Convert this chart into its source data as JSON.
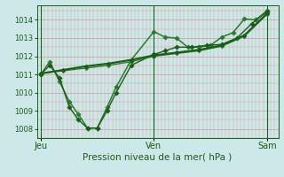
{
  "bg_color": "#cce8e8",
  "plot_bg_color": "#cce8e8",
  "line_color_dark": "#1a5c1a",
  "line_color_mid": "#2d7a2d",
  "ylim": [
    1007.5,
    1014.8
  ],
  "yticks": [
    1008,
    1009,
    1010,
    1011,
    1012,
    1013,
    1014
  ],
  "xlabel": "Pression niveau de la mer( hPa )",
  "xtick_labels": [
    "Jeu",
    "Ven",
    "Sam"
  ],
  "xtick_positions": [
    0.0,
    1.5,
    3.0
  ],
  "vlines": [
    0.0,
    1.5,
    3.0
  ],
  "xlim": [
    -0.05,
    3.15
  ],
  "series": [
    {
      "x": [
        0.0,
        0.12,
        0.25,
        0.38,
        0.5,
        0.62,
        0.75,
        0.88,
        1.0,
        1.2,
        1.5,
        1.65,
        1.8,
        1.95,
        2.1,
        2.25,
        2.4,
        2.55,
        2.7,
        2.85,
        3.0
      ],
      "y": [
        1011.0,
        1011.7,
        1010.6,
        1009.5,
        1008.8,
        1008.05,
        1008.05,
        1009.2,
        1010.3,
        1011.8,
        1013.35,
        1013.05,
        1013.0,
        1012.5,
        1012.5,
        1012.6,
        1013.05,
        1013.3,
        1014.05,
        1014.0,
        1014.5
      ],
      "color": "#2d7a2d",
      "lw": 1.1,
      "ms": 2.8
    },
    {
      "x": [
        0.0,
        0.12,
        0.25,
        0.38,
        0.5,
        0.62,
        0.75,
        0.88,
        1.0,
        1.2,
        1.5,
        1.65,
        1.8,
        2.0,
        2.2,
        2.4,
        2.6,
        2.8,
        3.0
      ],
      "y": [
        1011.0,
        1011.5,
        1010.8,
        1009.2,
        1008.5,
        1008.05,
        1008.05,
        1009.0,
        1010.0,
        1011.5,
        1012.1,
        1012.3,
        1012.5,
        1012.5,
        1012.6,
        1012.65,
        1013.0,
        1013.8,
        1014.45
      ],
      "color": "#1a5c1a",
      "lw": 1.0,
      "ms": 2.8
    },
    {
      "x": [
        0.0,
        0.3,
        0.6,
        0.9,
        1.2,
        1.5,
        1.8,
        2.1,
        2.4,
        2.7,
        3.0
      ],
      "y": [
        1011.05,
        1011.2,
        1011.35,
        1011.5,
        1011.7,
        1012.0,
        1012.15,
        1012.3,
        1012.55,
        1013.1,
        1014.3
      ],
      "color": "#2d7a2d",
      "lw": 1.0,
      "ms": 2.5
    },
    {
      "x": [
        0.0,
        0.3,
        0.6,
        0.9,
        1.2,
        1.5,
        1.8,
        2.1,
        2.4,
        2.7,
        3.0
      ],
      "y": [
        1011.05,
        1011.25,
        1011.45,
        1011.6,
        1011.8,
        1012.05,
        1012.2,
        1012.35,
        1012.6,
        1013.15,
        1014.35
      ],
      "color": "#1a5c1a",
      "lw": 1.5,
      "ms": 2.5
    }
  ]
}
